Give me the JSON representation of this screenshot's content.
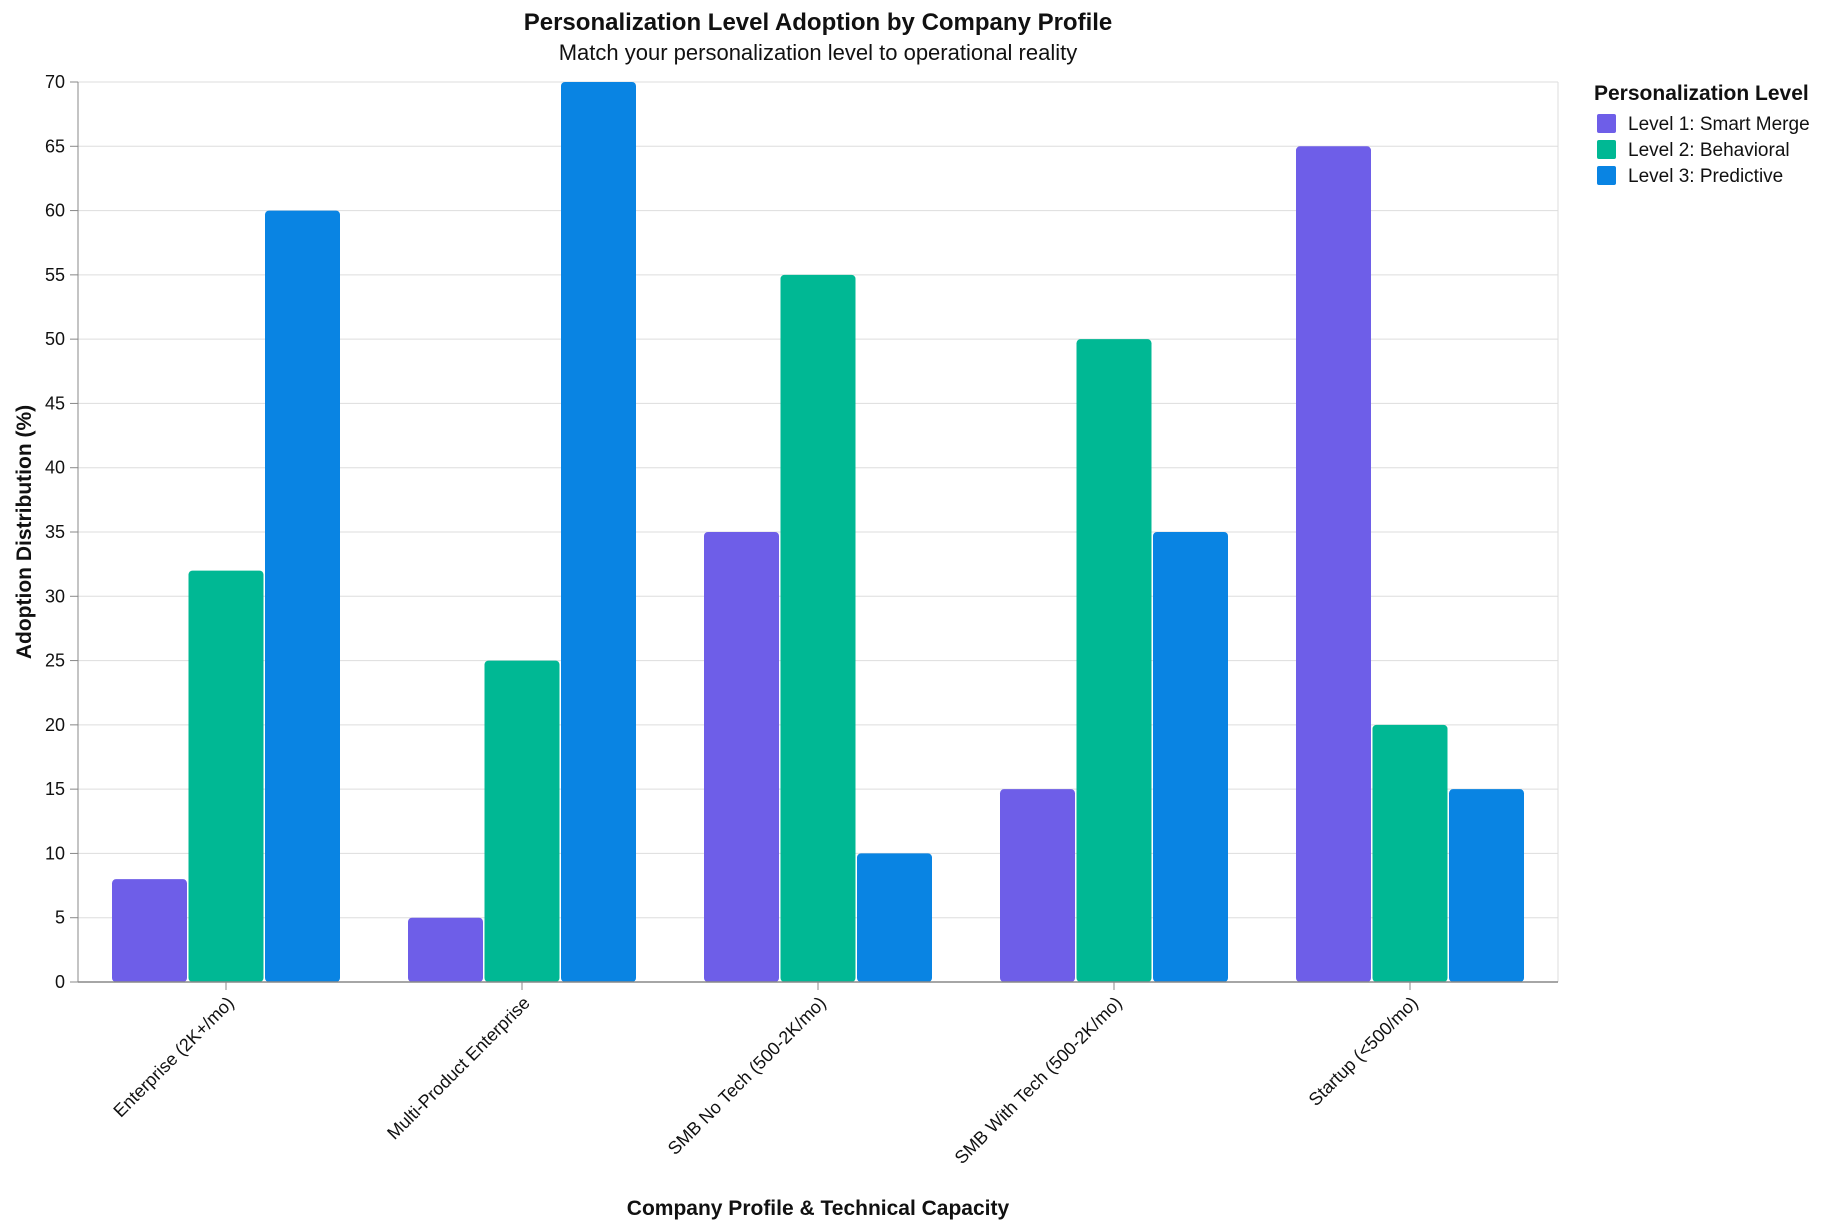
{
  "chart_data": {
    "type": "bar",
    "title": "Personalization Level Adoption by Company Profile",
    "subtitle": "Match your personalization level to operational reality",
    "xlabel": "Company Profile & Technical Capacity",
    "ylabel": "Adoption Distribution (%)",
    "ylim": [
      0,
      70
    ],
    "yticks": [
      0,
      5,
      10,
      15,
      20,
      25,
      30,
      35,
      40,
      45,
      50,
      55,
      60,
      65,
      70
    ],
    "grid": true,
    "legend_title": "Personalization Level",
    "legend_position": "top-right",
    "categories": [
      "Enterprise (2K+/mo)",
      "Multi-Product Enterprise",
      "SMB No Tech (500-2K/mo)",
      "SMB With Tech (500-2K/mo)",
      "Startup (<500/mo)"
    ],
    "series": [
      {
        "name": "Level 1: Smart Merge",
        "color": "#6e5ee8",
        "values": [
          8,
          5,
          35,
          15,
          65
        ]
      },
      {
        "name": "Level 2: Behavioral",
        "color": "#00b894",
        "values": [
          32,
          25,
          55,
          50,
          20
        ]
      },
      {
        "name": "Level 3: Predictive",
        "color": "#0984e3",
        "values": [
          60,
          70,
          10,
          35,
          15
        ]
      }
    ]
  }
}
